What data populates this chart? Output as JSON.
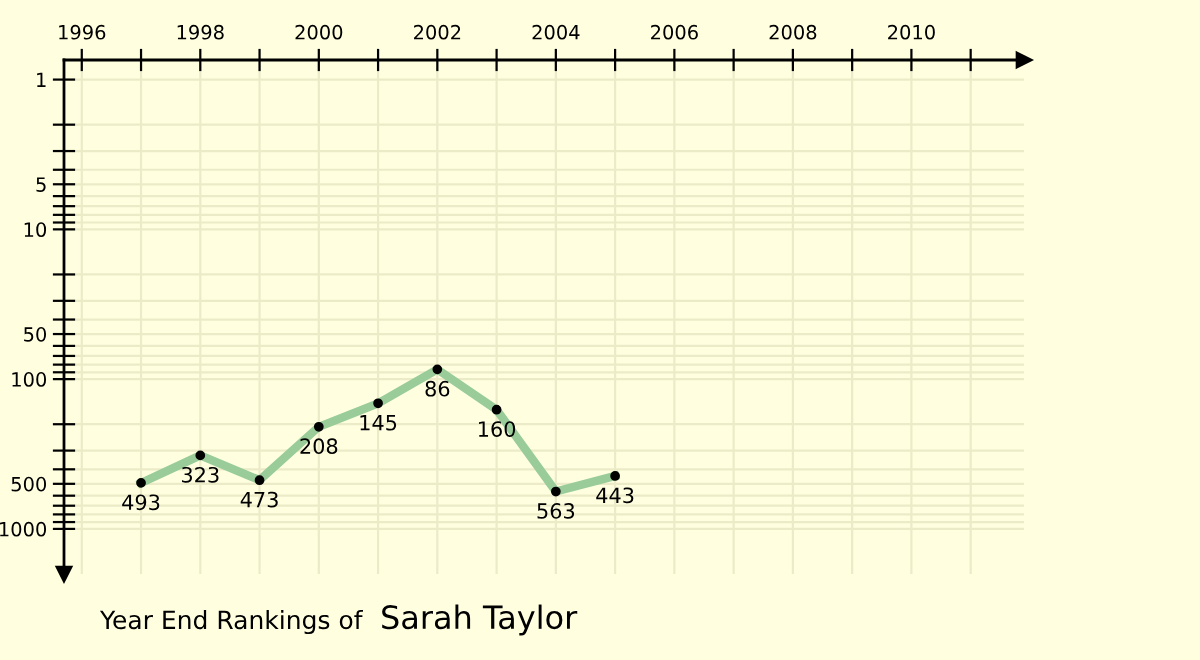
{
  "chart_data": {
    "type": "line",
    "title": "Year End Rankings of",
    "subtitle": "Sarah Taylor",
    "x": [
      1997,
      1998,
      1999,
      2000,
      2001,
      2002,
      2003,
      2004,
      2005
    ],
    "series": [
      {
        "color": "#99cc99",
        "values": [
          493,
          323,
          473,
          208,
          145,
          86,
          160,
          563,
          443
        ]
      }
    ],
    "data_labels": true,
    "marker": "circle",
    "line_style": "solid",
    "log": "y",
    "grid": true,
    "xlim": [
      1995.7,
      2011.9
    ],
    "ylim": [
      2000,
      0.74
    ],
    "xticks": [
      1996,
      {
        "value": 1997,
        "label": null
      },
      1998,
      {
        "value": 1999,
        "label": null
      },
      2000,
      {
        "value": 2001,
        "label": null
      },
      2002,
      {
        "value": 2003,
        "label": null
      },
      2004,
      {
        "value": 2005,
        "label": null
      },
      2006,
      {
        "value": 2007,
        "label": null
      },
      2008,
      {
        "value": 2009,
        "label": null
      },
      2010,
      {
        "value": 2011,
        "label": null
      }
    ],
    "yticks": [
      1,
      {
        "value": 2,
        "label": null
      },
      {
        "value": 3,
        "label": null
      },
      {
        "value": 4,
        "label": null
      },
      5,
      {
        "value": 6,
        "label": null
      },
      {
        "value": 7,
        "label": null
      },
      {
        "value": 8,
        "label": null
      },
      {
        "value": 9,
        "label": null
      },
      10,
      {
        "value": 20,
        "label": null
      },
      {
        "value": 30,
        "label": null
      },
      {
        "value": 40,
        "label": null
      },
      50,
      {
        "value": 60,
        "label": null
      },
      {
        "value": 70,
        "label": null
      },
      {
        "value": 80,
        "label": null
      },
      {
        "value": 90,
        "label": null
      },
      100,
      {
        "value": 200,
        "label": null
      },
      {
        "value": 300,
        "label": null
      },
      {
        "value": 400,
        "label": null
      },
      500,
      {
        "value": 600,
        "label": null
      },
      {
        "value": 700,
        "label": null
      },
      {
        "value": 800,
        "label": null
      },
      {
        "value": 900,
        "label": null
      },
      1000
    ]
  }
}
